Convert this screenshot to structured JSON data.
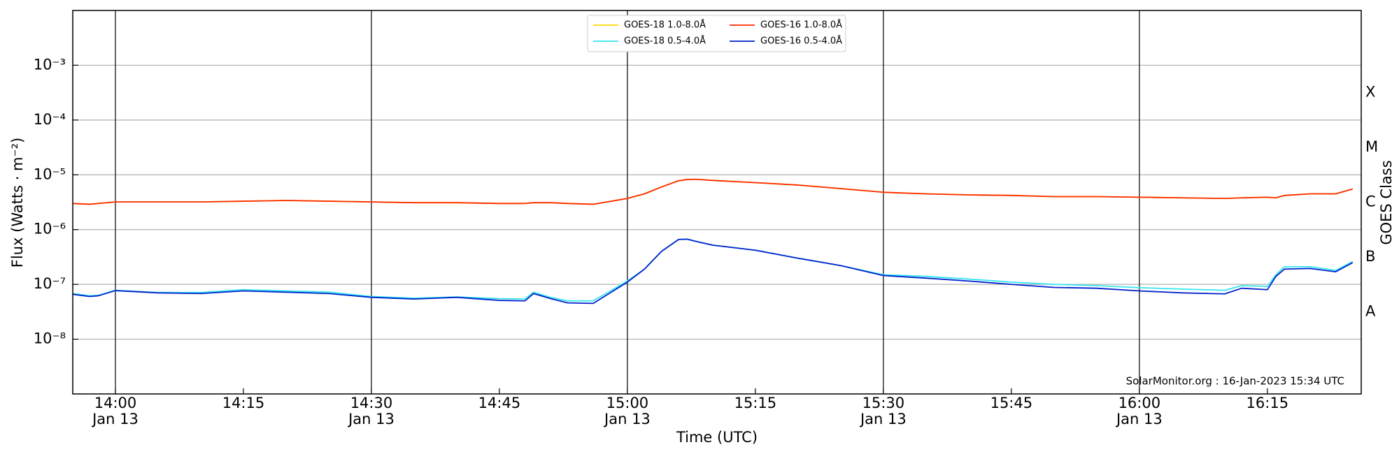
{
  "chart_data": {
    "type": "line",
    "x_label": "Time (UTC)",
    "y_label": "Flux (Watts · m⁻²)",
    "y2_label": "GOES Class",
    "annotation": "SolarMonitor.org : 16-Jan-2023 15:34 UTC",
    "log_y": true,
    "grid": true,
    "legend": "top-center",
    "xlim": [
      "13:55",
      "16:26"
    ],
    "xticks": [
      {
        "value": "14:00",
        "label": "14:00",
        "date": "Jan 13"
      },
      "14:15",
      {
        "value": "14:30",
        "label": "14:30",
        "date": "Jan 13"
      },
      "14:45",
      {
        "value": "15:00",
        "label": "15:00",
        "date": "Jan 13"
      },
      "15:15",
      {
        "value": "15:30",
        "label": "15:30",
        "date": "Jan 13"
      },
      "15:45",
      {
        "value": "16:00",
        "label": "16:00",
        "date": "Jan 13"
      },
      "16:15"
    ],
    "ylim": [
      1e-09,
      0.01
    ],
    "yticks": [
      {
        "value": 1e-08,
        "label": "10⁻⁸"
      },
      {
        "value": 1e-07,
        "label": "10⁻⁷"
      },
      {
        "value": 1e-06,
        "label": "10⁻⁶"
      },
      {
        "value": 1e-05,
        "label": "10⁻⁵"
      },
      {
        "value": 0.0001,
        "label": "10⁻⁴"
      },
      {
        "value": 0.001,
        "label": "10⁻³"
      }
    ],
    "y2lim": [
      1e-09,
      0.01
    ],
    "y2ticks": [
      {
        "value": 3.16e-08,
        "label": "A"
      },
      {
        "value": 3.16e-07,
        "label": "B"
      },
      {
        "value": 3.16e-06,
        "label": "C"
      },
      {
        "value": 3.16e-05,
        "label": "M"
      },
      {
        "value": 0.000316,
        "label": "X"
      }
    ],
    "x": [
      "13:55",
      "13:57",
      "13:58",
      "14:00",
      "14:05",
      "14:10",
      "14:15",
      "14:20",
      "14:25",
      "14:30",
      "14:35",
      "14:40",
      "14:45",
      "14:48",
      "14:49",
      "14:51",
      "14:53",
      "14:56",
      "15:00",
      "15:02",
      "15:04",
      "15:06",
      "15:07",
      "15:08",
      "15:10",
      "15:15",
      "15:20",
      "15:25",
      "15:30",
      "15:35",
      "15:40",
      "15:45",
      "15:50",
      "15:55",
      "16:00",
      "16:05",
      "16:10",
      "16:12",
      "16:15",
      "16:16",
      "16:17",
      "16:20",
      "16:23",
      "16:25"
    ],
    "series": [
      {
        "name": "GOES-18 1.0-8.0Å",
        "color": "#ffd700",
        "values": [
          3e-06,
          2.9e-06,
          3e-06,
          3.2e-06,
          3.2e-06,
          3.2e-06,
          3.3e-06,
          3.4e-06,
          3.3e-06,
          3.2e-06,
          3.1e-06,
          3.1e-06,
          3e-06,
          3e-06,
          3.1e-06,
          3.1e-06,
          3e-06,
          2.9e-06,
          3.7e-06,
          4.5e-06,
          6e-06,
          7.8e-06,
          8.2e-06,
          8.3e-06,
          7.9e-06,
          7.2e-06,
          6.5e-06,
          5.6e-06,
          4.8e-06,
          4.5e-06,
          4.3e-06,
          4.2e-06,
          4e-06,
          4e-06,
          3.9e-06,
          3.8e-06,
          3.7e-06,
          3.8e-06,
          3.9e-06,
          3.8e-06,
          4.2e-06,
          4.5e-06,
          4.5e-06,
          5.5e-06
        ]
      },
      {
        "name": "GOES-18 0.5-4.0Å",
        "color": "#33e6f0",
        "values": [
          6.8e-08,
          6.2e-08,
          6.3e-08,
          7.8e-08,
          7.1e-08,
          7.1e-08,
          8e-08,
          7.6e-08,
          7.2e-08,
          6e-08,
          5.6e-08,
          5.9e-08,
          5.5e-08,
          5.4e-08,
          7.2e-08,
          5.8e-08,
          5e-08,
          5e-08,
          1.15e-07,
          1.9e-07,
          4e-07,
          6.6e-07,
          6.7e-07,
          6.1e-07,
          5.2e-07,
          4.2e-07,
          3e-07,
          2.2e-07,
          1.5e-07,
          1.4e-07,
          1.25e-07,
          1.1e-07,
          1e-07,
          9.5e-08,
          8.7e-08,
          8.2e-08,
          7.8e-08,
          9.5e-08,
          9.2e-08,
          1.5e-07,
          2.1e-07,
          2.1e-07,
          1.8e-07,
          2.6e-07
        ]
      },
      {
        "name": "GOES-16 1.0-8.0Å",
        "color": "#ff2a00",
        "values": [
          3e-06,
          2.9e-06,
          3e-06,
          3.2e-06,
          3.2e-06,
          3.2e-06,
          3.3e-06,
          3.4e-06,
          3.3e-06,
          3.2e-06,
          3.1e-06,
          3.1e-06,
          3e-06,
          3e-06,
          3.1e-06,
          3.1e-06,
          3e-06,
          2.9e-06,
          3.7e-06,
          4.5e-06,
          6e-06,
          7.8e-06,
          8.2e-06,
          8.3e-06,
          7.9e-06,
          7.2e-06,
          6.5e-06,
          5.6e-06,
          4.8e-06,
          4.5e-06,
          4.3e-06,
          4.2e-06,
          4e-06,
          4e-06,
          3.9e-06,
          3.8e-06,
          3.7e-06,
          3.8e-06,
          3.9e-06,
          3.8e-06,
          4.2e-06,
          4.5e-06,
          4.5e-06,
          5.5e-06
        ]
      },
      {
        "name": "GOES-16 0.5-4.0Å",
        "color": "#0022cc",
        "values": [
          6.6e-08,
          6e-08,
          6.2e-08,
          7.7e-08,
          7e-08,
          6.8e-08,
          7.6e-08,
          7.2e-08,
          6.8e-08,
          5.8e-08,
          5.4e-08,
          5.8e-08,
          5.1e-08,
          5e-08,
          6.8e-08,
          5.5e-08,
          4.6e-08,
          4.5e-08,
          1.1e-07,
          1.9e-07,
          4e-07,
          6.6e-07,
          6.7e-07,
          6.1e-07,
          5.2e-07,
          4.2e-07,
          3e-07,
          2.2e-07,
          1.45e-07,
          1.3e-07,
          1.15e-07,
          1e-07,
          8.8e-08,
          8.5e-08,
          7.6e-08,
          7e-08,
          6.7e-08,
          8.5e-08,
          8e-08,
          1.4e-07,
          1.9e-07,
          1.95e-07,
          1.7e-07,
          2.5e-07
        ]
      }
    ]
  }
}
